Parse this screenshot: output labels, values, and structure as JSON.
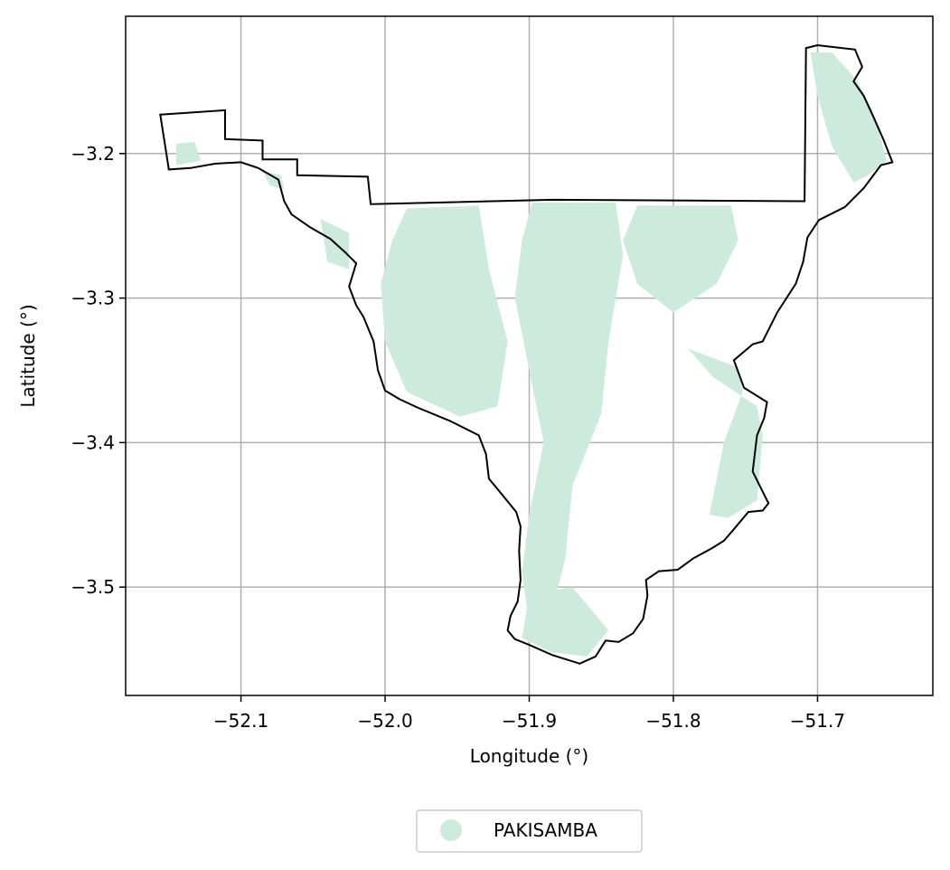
{
  "chart_data": {
    "type": "map",
    "xlabel": "Longitude (°)",
    "ylabel": "Latitude (°)",
    "xlim": [
      -52.18,
      -51.62
    ],
    "ylim": [
      -3.575,
      -3.105
    ],
    "x_ticks": [
      -52.1,
      -52.0,
      -51.9,
      -51.8,
      -51.7
    ],
    "y_ticks": [
      -3.2,
      -3.3,
      -3.4,
      -3.5
    ],
    "x_tick_labels": [
      "−52.1",
      "−52.0",
      "−51.9",
      "−51.8",
      "−51.7"
    ],
    "y_tick_labels": [
      "−3.2",
      "−3.3",
      "−3.4",
      "−3.5"
    ],
    "grid": true,
    "legend": {
      "placement": "bottom-center",
      "entries": [
        {
          "label": "PAKISAMBA",
          "color": "#cdebdc"
        }
      ]
    },
    "boundary": [
      [
        -52.156,
        -3.173
      ],
      [
        -52.111,
        -3.17
      ],
      [
        -52.111,
        -3.19
      ],
      [
        -52.085,
        -3.191
      ],
      [
        -52.085,
        -3.204
      ],
      [
        -52.061,
        -3.204
      ],
      [
        -52.061,
        -3.215
      ],
      [
        -52.012,
        -3.216
      ],
      [
        -52.01,
        -3.235
      ],
      [
        -51.884,
        -3.232
      ],
      [
        -51.709,
        -3.233
      ],
      [
        -51.708,
        -3.127
      ],
      [
        -51.7,
        -3.125
      ],
      [
        -51.674,
        -3.128
      ],
      [
        -51.669,
        -3.14
      ],
      [
        -51.675,
        -3.15
      ],
      [
        -51.668,
        -3.16
      ],
      [
        -51.661,
        -3.175
      ],
      [
        -51.654,
        -3.191
      ],
      [
        -51.648,
        -3.206
      ],
      [
        -51.656,
        -3.208
      ],
      [
        -51.668,
        -3.224
      ],
      [
        -51.681,
        -3.237
      ],
      [
        -51.699,
        -3.246
      ],
      [
        -51.707,
        -3.258
      ],
      [
        -51.71,
        -3.275
      ],
      [
        -51.715,
        -3.29
      ],
      [
        -51.728,
        -3.31
      ],
      [
        -51.738,
        -3.33
      ],
      [
        -51.745,
        -3.332
      ],
      [
        -51.758,
        -3.343
      ],
      [
        -51.751,
        -3.362
      ],
      [
        -51.735,
        -3.372
      ],
      [
        -51.737,
        -3.383
      ],
      [
        -51.742,
        -3.395
      ],
      [
        -51.745,
        -3.42
      ],
      [
        -51.74,
        -3.43
      ],
      [
        -51.734,
        -3.442
      ],
      [
        -51.738,
        -3.447
      ],
      [
        -51.748,
        -3.448
      ],
      [
        -51.758,
        -3.46
      ],
      [
        -51.765,
        -3.468
      ],
      [
        -51.773,
        -3.473
      ],
      [
        -51.786,
        -3.48
      ],
      [
        -51.797,
        -3.488
      ],
      [
        -51.81,
        -3.489
      ],
      [
        -51.819,
        -3.495
      ],
      [
        -51.818,
        -3.506
      ],
      [
        -51.821,
        -3.522
      ],
      [
        -51.828,
        -3.532
      ],
      [
        -51.838,
        -3.538
      ],
      [
        -51.847,
        -3.537
      ],
      [
        -51.854,
        -3.548
      ],
      [
        -51.865,
        -3.553
      ],
      [
        -51.884,
        -3.547
      ],
      [
        -51.9,
        -3.54
      ],
      [
        -51.91,
        -3.536
      ],
      [
        -51.915,
        -3.53
      ],
      [
        -51.913,
        -3.52
      ],
      [
        -51.908,
        -3.51
      ],
      [
        -51.906,
        -3.495
      ],
      [
        -51.907,
        -3.475
      ],
      [
        -51.906,
        -3.458
      ],
      [
        -51.909,
        -3.448
      ],
      [
        -51.918,
        -3.437
      ],
      [
        -51.928,
        -3.425
      ],
      [
        -51.93,
        -3.408
      ],
      [
        -51.935,
        -3.395
      ],
      [
        -51.955,
        -3.385
      ],
      [
        -51.977,
        -3.376
      ],
      [
        -51.99,
        -3.37
      ],
      [
        -52.0,
        -3.364
      ],
      [
        -52.005,
        -3.35
      ],
      [
        -52.008,
        -3.33
      ],
      [
        -52.015,
        -3.313
      ],
      [
        -52.02,
        -3.305
      ],
      [
        -52.025,
        -3.292
      ],
      [
        -52.02,
        -3.276
      ],
      [
        -52.028,
        -3.268
      ],
      [
        -52.038,
        -3.259
      ],
      [
        -52.052,
        -3.251
      ],
      [
        -52.065,
        -3.242
      ],
      [
        -52.07,
        -3.233
      ],
      [
        -52.074,
        -3.218
      ],
      [
        -52.088,
        -3.21
      ],
      [
        -52.1,
        -3.206
      ],
      [
        -52.118,
        -3.207
      ],
      [
        -52.135,
        -3.21
      ],
      [
        -52.15,
        -3.211
      ]
    ],
    "forest_patches": [
      [
        [
          -51.985,
          -3.238
        ],
        [
          -51.935,
          -3.236
        ],
        [
          -51.928,
          -3.28
        ],
        [
          -51.915,
          -3.33
        ],
        [
          -51.922,
          -3.375
        ],
        [
          -51.948,
          -3.382
        ],
        [
          -51.985,
          -3.365
        ],
        [
          -52.0,
          -3.33
        ],
        [
          -52.003,
          -3.29
        ],
        [
          -51.995,
          -3.26
        ]
      ],
      [
        [
          -51.898,
          -3.234
        ],
        [
          -51.84,
          -3.234
        ],
        [
          -51.835,
          -3.27
        ],
        [
          -51.845,
          -3.33
        ],
        [
          -51.85,
          -3.38
        ],
        [
          -51.87,
          -3.43
        ],
        [
          -51.875,
          -3.48
        ],
        [
          -51.885,
          -3.52
        ],
        [
          -51.9,
          -3.525
        ],
        [
          -51.905,
          -3.49
        ],
        [
          -51.9,
          -3.45
        ],
        [
          -51.89,
          -3.4
        ],
        [
          -51.9,
          -3.35
        ],
        [
          -51.91,
          -3.3
        ],
        [
          -51.905,
          -3.26
        ]
      ],
      [
        [
          -51.825,
          -3.236
        ],
        [
          -51.76,
          -3.236
        ],
        [
          -51.755,
          -3.26
        ],
        [
          -51.77,
          -3.29
        ],
        [
          -51.8,
          -3.31
        ],
        [
          -51.825,
          -3.29
        ],
        [
          -51.835,
          -3.26
        ]
      ],
      [
        [
          -51.79,
          -3.335
        ],
        [
          -51.755,
          -3.348
        ],
        [
          -51.752,
          -3.365
        ],
        [
          -51.765,
          -3.4
        ],
        [
          -51.775,
          -3.45
        ],
        [
          -51.762,
          -3.452
        ],
        [
          -51.742,
          -3.44
        ],
        [
          -51.738,
          -3.395
        ],
        [
          -51.742,
          -3.375
        ],
        [
          -51.772,
          -3.355
        ]
      ],
      [
        [
          -51.9,
          -3.505
        ],
        [
          -51.87,
          -3.5
        ],
        [
          -51.845,
          -3.53
        ],
        [
          -51.86,
          -3.548
        ],
        [
          -51.885,
          -3.545
        ],
        [
          -51.905,
          -3.535
        ]
      ],
      [
        [
          -51.705,
          -3.13
        ],
        [
          -51.7,
          -3.16
        ],
        [
          -51.69,
          -3.195
        ],
        [
          -51.675,
          -3.22
        ],
        [
          -51.665,
          -3.215
        ],
        [
          -51.652,
          -3.205
        ],
        [
          -51.66,
          -3.175
        ],
        [
          -51.672,
          -3.15
        ],
        [
          -51.69,
          -3.13
        ]
      ],
      [
        [
          -52.145,
          -3.193
        ],
        [
          -52.132,
          -3.192
        ],
        [
          -52.128,
          -3.205
        ],
        [
          -52.145,
          -3.208
        ]
      ],
      [
        [
          -52.045,
          -3.245
        ],
        [
          -52.025,
          -3.255
        ],
        [
          -52.025,
          -3.28
        ],
        [
          -52.04,
          -3.275
        ]
      ],
      [
        [
          -52.085,
          -3.212
        ],
        [
          -52.072,
          -3.215
        ],
        [
          -52.07,
          -3.225
        ],
        [
          -52.08,
          -3.222
        ]
      ]
    ]
  }
}
